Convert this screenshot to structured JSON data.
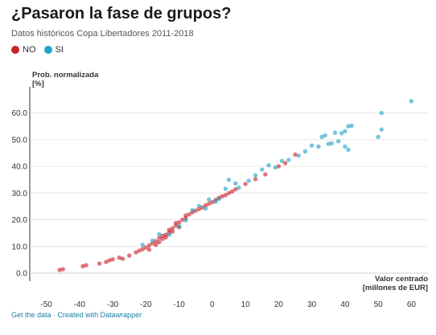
{
  "chart_data": {
    "type": "scatter",
    "title": "¿Pasaron la fase de grupos?",
    "subtitle": "Datos históricos Copa Libertadores 2011-2018",
    "ylabel": [
      "Prob. normalizada",
      "[%]"
    ],
    "xlabel": [
      "Valor centrado",
      "[millones de EUR]"
    ],
    "xlim": [
      -55,
      65
    ],
    "ylim": [
      -3,
      68
    ],
    "x_ticks": [
      "-50",
      "-40",
      "-30",
      "-20",
      "-10",
      "0",
      "10",
      "20",
      "30",
      "40",
      "50",
      "60"
    ],
    "x_tick_values": [
      -50,
      -40,
      -30,
      -20,
      -10,
      0,
      10,
      20,
      30,
      40,
      50,
      60
    ],
    "y_ticks": [
      "0.0",
      "10.0",
      "20.0",
      "30.0",
      "40.0",
      "50.0",
      "60.0"
    ],
    "y_tick_values": [
      0,
      10,
      20,
      30,
      40,
      50,
      60
    ],
    "grid": true,
    "legend_position": "top-left",
    "series": [
      {
        "name": "NO",
        "color": "#cc2028",
        "points": [
          [
            -46,
            1.2
          ],
          [
            -45,
            1.5
          ],
          [
            -39,
            2.6
          ],
          [
            -38,
            3.0
          ],
          [
            -34,
            3.6
          ],
          [
            -32,
            4.2
          ],
          [
            -31,
            4.8
          ],
          [
            -30,
            5.2
          ],
          [
            -28,
            5.8
          ],
          [
            -27,
            5.4
          ],
          [
            -25,
            6.6
          ],
          [
            -23,
            7.8
          ],
          [
            -22,
            8.4
          ],
          [
            -21,
            9.0
          ],
          [
            -20,
            9.6
          ],
          [
            -19,
            10.4
          ],
          [
            -19,
            8.8
          ],
          [
            -18,
            11.2
          ],
          [
            -17,
            10.6
          ],
          [
            -17,
            12.0
          ],
          [
            -16,
            11.6
          ],
          [
            -16,
            13.2
          ],
          [
            -15,
            12.8
          ],
          [
            -15,
            14.0
          ],
          [
            -14,
            14.4
          ],
          [
            -14,
            13.4
          ],
          [
            -13,
            15.2
          ],
          [
            -13,
            16.2
          ],
          [
            -12,
            16.8
          ],
          [
            -12,
            15.6
          ],
          [
            -11,
            17.8
          ],
          [
            -11,
            18.8
          ],
          [
            -10,
            19.0
          ],
          [
            -10,
            17.2
          ],
          [
            -9,
            20.0
          ],
          [
            -8,
            20.6
          ],
          [
            -8,
            21.6
          ],
          [
            -7,
            22.0
          ],
          [
            -6,
            22.8
          ],
          [
            -5,
            23.4
          ],
          [
            -4,
            24.0
          ],
          [
            -3,
            24.6
          ],
          [
            -2,
            25.4
          ],
          [
            -1,
            26.0
          ],
          [
            0,
            26.6
          ],
          [
            1,
            27.4
          ],
          [
            2,
            28.2
          ],
          [
            3,
            28.8
          ],
          [
            4,
            29.2
          ],
          [
            5,
            30.0
          ],
          [
            6,
            30.6
          ],
          [
            7,
            31.4
          ],
          [
            10,
            33.4
          ],
          [
            13,
            35.2
          ],
          [
            16,
            37.0
          ],
          [
            20,
            40.0
          ],
          [
            22,
            41.2
          ],
          [
            25,
            44.4
          ]
        ]
      },
      {
        "name": "SI",
        "color": "#22a2c8",
        "points": [
          [
            -21,
            10.6
          ],
          [
            -18,
            12.2
          ],
          [
            -16,
            14.6
          ],
          [
            -13,
            14.4
          ],
          [
            -10,
            17.6
          ],
          [
            -8,
            19.8
          ],
          [
            -6,
            23.6
          ],
          [
            -4,
            25.2
          ],
          [
            -2,
            24.2
          ],
          [
            -1,
            27.6
          ],
          [
            1,
            26.8
          ],
          [
            2,
            27.8
          ],
          [
            4,
            31.6
          ],
          [
            5,
            35.0
          ],
          [
            7,
            33.6
          ],
          [
            8,
            32.0
          ],
          [
            11,
            34.6
          ],
          [
            13,
            36.6
          ],
          [
            15,
            38.8
          ],
          [
            17,
            40.4
          ],
          [
            19,
            39.6
          ],
          [
            21,
            42.0
          ],
          [
            23,
            42.4
          ],
          [
            26,
            44.0
          ],
          [
            28,
            45.6
          ],
          [
            30,
            47.8
          ],
          [
            32,
            47.4
          ],
          [
            33,
            51.0
          ],
          [
            34,
            51.6
          ],
          [
            35,
            48.4
          ],
          [
            36,
            48.6
          ],
          [
            37,
            52.6
          ],
          [
            38,
            49.4
          ],
          [
            39,
            52.4
          ],
          [
            40,
            47.4
          ],
          [
            40,
            53.2
          ],
          [
            41,
            46.2
          ],
          [
            41,
            55.0
          ],
          [
            42,
            55.2
          ],
          [
            50,
            51.0
          ],
          [
            51,
            53.8
          ],
          [
            51,
            60.0
          ],
          [
            60,
            64.4
          ]
        ]
      }
    ]
  },
  "legend": [
    {
      "label": "NO",
      "color": "#cc2028"
    },
    {
      "label": "SI",
      "color": "#22a2c8"
    }
  ],
  "footer": {
    "get_data": "Get the data",
    "separator": " · ",
    "created_with": "Created with Datawrapper"
  }
}
